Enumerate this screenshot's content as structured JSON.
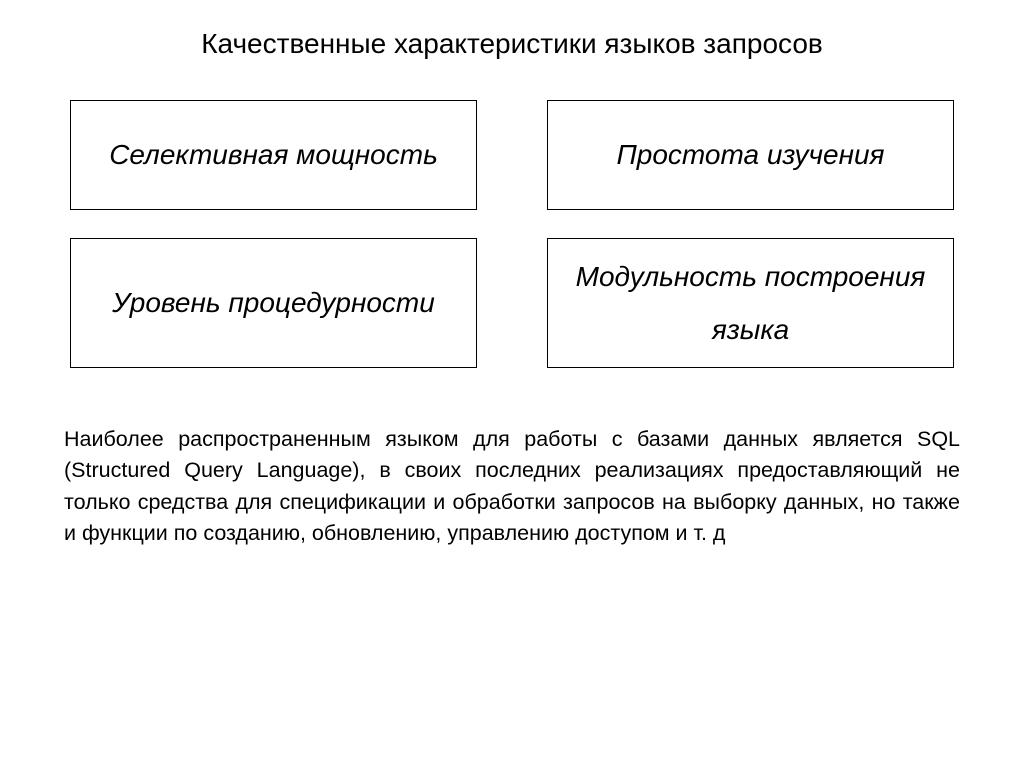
{
  "title": "Качественные характеристики языков запросов",
  "boxes": {
    "top_left": "Селективная мощность",
    "top_right": "Простота изучения",
    "bottom_left": "Уровень процедурности",
    "bottom_right": "Модульность построения языка"
  },
  "paragraph": "Наиболее распространенным языком для работы с базами данных является SQL (Structured Query Language), в своих последних реализациях предоставляющий не только средства для спецификации и обработки запросов на выборку данных, но также и функции по созданию, обновлению, управлению доступом и т. д",
  "style": {
    "background_color": "#ffffff",
    "text_color": "#000000",
    "border_color": "#000000",
    "title_fontsize": 28,
    "box_fontsize": 28,
    "box_font_style": "italic",
    "paragraph_fontsize": 21.5,
    "grid_columns": 2,
    "grid_column_gap": 70,
    "grid_row_gap": 28
  }
}
